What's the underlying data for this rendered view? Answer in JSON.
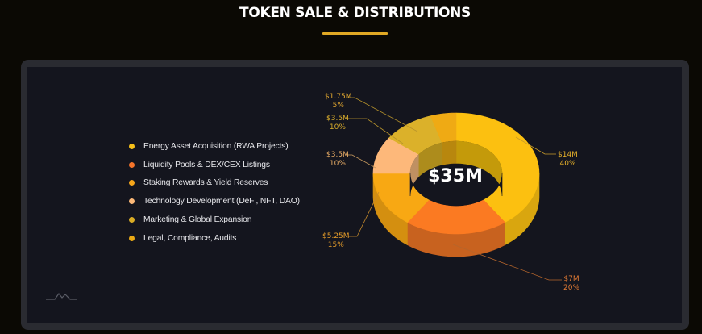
{
  "header": {
    "title": "TOKEN SALE & DISTRIBUTIONS",
    "accent_color": "#e0a824"
  },
  "legend": {
    "items": [
      {
        "label": "Energy Asset Acquisition (RWA Projects)",
        "color": "#f7c01a"
      },
      {
        "label": "Liquidity Pools & DEX/CEX Listings",
        "color": "#f5742a"
      },
      {
        "label": "Staking Rewards & Yield Reserves",
        "color": "#f5a51a"
      },
      {
        "label": "Technology Development (DeFi, NFT, DAO)",
        "color": "#fbb878"
      },
      {
        "label": "Marketing & Global Expansion",
        "color": "#d9ac25"
      },
      {
        "label": "Legal, Compliance, Audits",
        "color": "#e9a915"
      }
    ]
  },
  "donut": {
    "center_label": "$35M",
    "callouts": [
      {
        "amount": "$14M",
        "percent": "40%"
      },
      {
        "amount": "$7M",
        "percent": "20%"
      },
      {
        "amount": "$5.25M",
        "percent": "15%"
      },
      {
        "amount": "$3.5M",
        "percent": "10%"
      },
      {
        "amount": "$3.5M",
        "percent": "10%"
      },
      {
        "amount": "$1.75M",
        "percent": "5%"
      }
    ]
  },
  "chart_data": {
    "type": "pie",
    "title": "TOKEN SALE & DISTRIBUTIONS",
    "subtype": "3d-donut",
    "total": 35,
    "total_label": "$35M",
    "unit": "$M",
    "categories": [
      "Energy Asset Acquisition (RWA Projects)",
      "Liquidity Pools & DEX/CEX Listings",
      "Staking Rewards & Yield Reserves",
      "Technology Development (DeFi, NFT, DAO)",
      "Marketing & Global Expansion",
      "Legal, Compliance, Audits"
    ],
    "values": [
      14,
      7,
      5.25,
      3.5,
      3.5,
      1.75
    ],
    "percentages": [
      40,
      20,
      15,
      10,
      10,
      5
    ],
    "value_labels": [
      "$14M",
      "$7M",
      "$5.25M",
      "$3.5M",
      "$3.5M",
      "$1.75M"
    ],
    "colors": [
      "#f7c01a",
      "#f5742a",
      "#f5a51a",
      "#fbb878",
      "#d9ac25",
      "#e9a915"
    ],
    "legend_position": "left"
  }
}
